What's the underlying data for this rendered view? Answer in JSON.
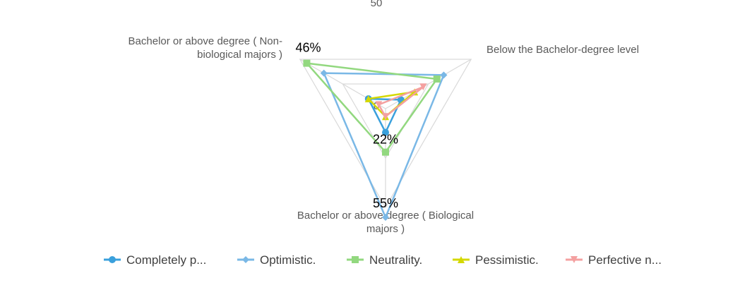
{
  "chart_data": {
    "type": "radar",
    "axes": [
      "Bachelor or above degree ( Non-biological majors )",
      "Below the Bachelor-degree level",
      "Bachelor or above degree ( Biological majors )"
    ],
    "axis_label_lines": [
      [
        "Bachelor or above degree ( Non-",
        "biological majors )"
      ],
      [
        "Below the Bachelor-degree level"
      ],
      [
        "Bachelor or above degree ( Biological",
        "majors )"
      ]
    ],
    "rlim": [
      0,
      50
    ],
    "ticks": [
      {
        "value": 0,
        "label": "0"
      },
      {
        "value": 50,
        "label": "50"
      }
    ],
    "grid": true,
    "legend_position": "bottom",
    "series": [
      {
        "name": "Completely p...",
        "color": "#3aa0dc",
        "marker": "circle",
        "values": [
          10,
          9,
          12
        ]
      },
      {
        "name": "Optimistic.",
        "color": "#7ab8e6",
        "marker": "diamond",
        "values": [
          36,
          34,
          55
        ]
      },
      {
        "name": "Neutrality.",
        "color": "#92d87f",
        "marker": "square",
        "values": [
          46,
          30,
          22
        ]
      },
      {
        "name": "Pessimistic.",
        "color": "#d4d800",
        "marker": "triangle",
        "values": [
          10,
          17,
          4
        ]
      },
      {
        "name": "Perfective n...",
        "color": "#f4a0a0",
        "marker": "triangle-down",
        "values": [
          4,
          22,
          4
        ]
      }
    ],
    "data_labels": [
      {
        "series": 2,
        "axis": 0,
        "text": "46%"
      },
      {
        "series": 2,
        "axis": 2,
        "text": "22%"
      },
      {
        "series": 1,
        "axis": 2,
        "text": "55%"
      }
    ]
  }
}
